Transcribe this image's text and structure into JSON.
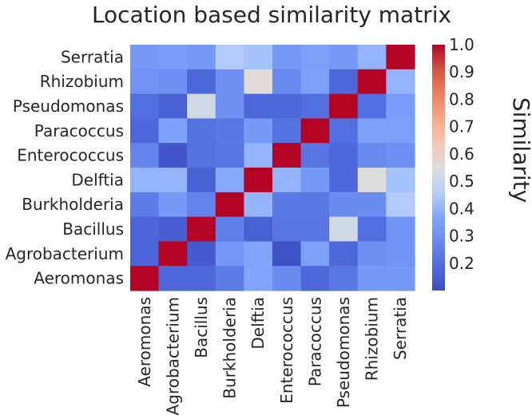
{
  "chart_data": {
    "type": "heatmap",
    "title": "Location based similarity matrix",
    "x_labels": [
      "Aeromonas",
      "Agrobacterium",
      "Bacillus",
      "Burkholderia",
      "Delftia",
      "Enterococcus",
      "Paracoccus",
      "Pseudomonas",
      "Rhizobium",
      "Serratia"
    ],
    "y_labels": [
      "Serratia",
      "Rhizobium",
      "Pseudomonas",
      "Paracoccus",
      "Enterococcus",
      "Delftia",
      "Burkholderia",
      "Bacillus",
      "Agrobacterium",
      "Aeromonas"
    ],
    "values": [
      [
        0.33,
        0.34,
        0.33,
        0.45,
        0.43,
        0.33,
        0.35,
        0.33,
        0.4,
        1.0
      ],
      [
        0.31,
        0.3,
        0.18,
        0.3,
        0.56,
        0.28,
        0.35,
        0.18,
        1.0,
        0.4
      ],
      [
        0.2,
        0.16,
        0.52,
        0.3,
        0.18,
        0.18,
        0.2,
        1.0,
        0.2,
        0.34
      ],
      [
        0.18,
        0.36,
        0.21,
        0.23,
        0.33,
        0.21,
        1.0,
        0.2,
        0.35,
        0.35
      ],
      [
        0.27,
        0.13,
        0.21,
        0.22,
        0.4,
        1.0,
        0.22,
        0.18,
        0.28,
        0.3
      ],
      [
        0.4,
        0.4,
        0.16,
        0.38,
        1.0,
        0.4,
        0.33,
        0.18,
        0.55,
        0.43
      ],
      [
        0.24,
        0.33,
        0.26,
        1.0,
        0.4,
        0.23,
        0.23,
        0.29,
        0.29,
        0.45
      ],
      [
        0.17,
        0.15,
        1.0,
        0.25,
        0.16,
        0.22,
        0.22,
        0.52,
        0.2,
        0.31
      ],
      [
        0.17,
        1.0,
        0.14,
        0.32,
        0.37,
        0.12,
        0.35,
        0.18,
        0.3,
        0.31
      ],
      [
        1.0,
        0.18,
        0.18,
        0.24,
        0.37,
        0.29,
        0.18,
        0.23,
        0.33,
        0.33
      ]
    ],
    "colorbar": {
      "label": "Similarity",
      "ticks": [
        "1.0",
        "0.9",
        "0.8",
        "0.7",
        "0.6",
        "0.5",
        "0.4",
        "0.3",
        "0.2"
      ],
      "min": 0.1,
      "max": 1.0,
      "colormap": "coolwarm"
    },
    "grid": false
  }
}
